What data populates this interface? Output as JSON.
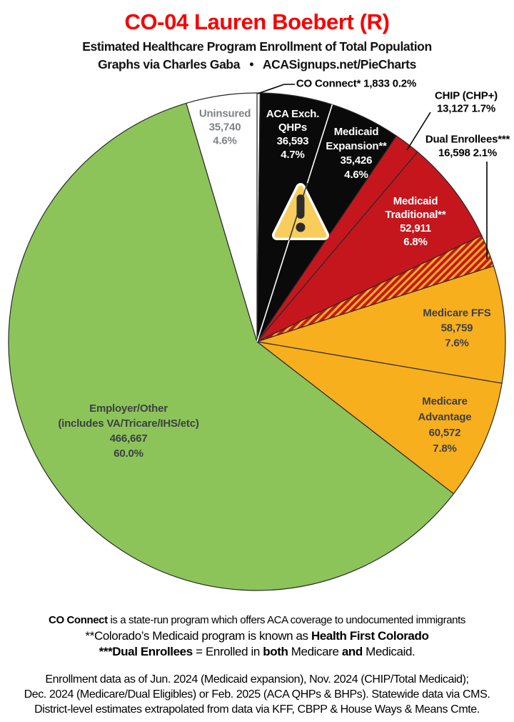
{
  "header": {
    "title": "CO-04 Lauren Boebert (R)",
    "title_color": "#f60000",
    "subtitle": "Estimated Healthcare Program Enrollment of Total Population",
    "credit": "Graphs via Charles Gaba   •   ACASignups.net/PieCharts"
  },
  "chart_data": {
    "type": "pie",
    "title": "Estimated Healthcare Program Enrollment of Total Population",
    "units": "people enrolled",
    "start_angle": "12-oclock",
    "direction": "clockwise",
    "outline_color": "#2a2a2a",
    "legend_position": "labels-on-slices-and-callouts",
    "hatch": {
      "base": "#c5161d",
      "stripe": "#f8af1d"
    },
    "slices": [
      {
        "id": "co-connect",
        "name": "CO Connect*",
        "value": 1833,
        "value_str": "1,833",
        "pct": 0.2,
        "pct_str": "0.2%",
        "color": "#ffffff",
        "callout_lines": [
          "CO Connect* 1,833 0.2%"
        ]
      },
      {
        "id": "aca-qhps",
        "name": "ACA Exch. QHPs",
        "value": 36593,
        "value_str": "36,593",
        "pct": 4.7,
        "pct_str": "4.7%",
        "color": "#0a0a0a",
        "text_color": "#ffffff",
        "label_lines": [
          "ACA Exch.",
          "QHPs",
          "36,593",
          "4.7%"
        ]
      },
      {
        "id": "medicaid-expansion",
        "name": "Medicaid Expansion**",
        "value": 35426,
        "value_str": "35,426",
        "pct": 4.6,
        "pct_str": "4.6%",
        "color": "#0a0a0a",
        "text_color": "#ffffff",
        "label_lines": [
          "Medicaid",
          "Expansion**",
          "35,426",
          "4.6%"
        ]
      },
      {
        "id": "chip",
        "name": "CHIP (CHP+)",
        "value": 13127,
        "value_str": "13,127",
        "pct": 1.7,
        "pct_str": "1.7%",
        "color": "#c5161d",
        "callout_lines": [
          "CHIP (CHP+)",
          "13,127 1.7%"
        ]
      },
      {
        "id": "medicaid-traditional",
        "name": "Medicaid Traditional**",
        "value": 52911,
        "value_str": "52,911",
        "pct": 6.8,
        "pct_str": "6.8%",
        "color": "#c5161d",
        "text_color": "#ffffff",
        "label_lines": [
          "Medicaid",
          "Traditional**",
          "52,911",
          "6.8%"
        ]
      },
      {
        "id": "dual-enrollees",
        "name": "Dual Enrollees***",
        "value": 16598,
        "value_str": "16,598",
        "pct": 2.1,
        "pct_str": "2.1%",
        "color": "#c5161d",
        "pattern": "diagonal-gold-stripes",
        "callout_lines": [
          "Dual Enrollees***",
          "16,598 2.1%"
        ]
      },
      {
        "id": "medicare-ffs",
        "name": "Medicare FFS",
        "value": 58759,
        "value_str": "58,759",
        "pct": 7.6,
        "pct_str": "7.6%",
        "color": "#f8af1d",
        "text_color": "#3e4044",
        "label_lines": [
          "Medicare FFS",
          "58,759",
          "7.6%"
        ]
      },
      {
        "id": "medicare-advantage",
        "name": "Medicare Advantage",
        "value": 60572,
        "value_str": "60,572",
        "pct": 7.8,
        "pct_str": "7.8%",
        "color": "#f8af1d",
        "text_color": "#3e4044",
        "label_lines": [
          "Medicare",
          "Advantage",
          "60,572",
          "7.8%"
        ]
      },
      {
        "id": "employer-other",
        "name": "Employer/Other (includes VA/Tricare/IHS/etc)",
        "value": 466667,
        "value_str": "466,667",
        "pct": 60.0,
        "pct_str": "60.0%",
        "color": "#8cc45a",
        "text_color": "#3e4044",
        "label_lines": [
          "Employer/Other",
          "(includes VA/Tricare/IHS/etc)",
          "466,667",
          "60.0%"
        ]
      },
      {
        "id": "uninsured",
        "name": "Uninsured",
        "value": 35740,
        "value_str": "35,740",
        "pct": 4.6,
        "pct_str": "4.6%",
        "color": "#ffffff",
        "text_color": "#7f8285",
        "label_lines": [
          "Uninsured",
          "35,740",
          "4.6%"
        ]
      }
    ],
    "annotations": {
      "warning_icon": "warning-triangle on ACA Exchange / Medicaid Expansion slices"
    }
  },
  "footnotes": {
    "block1": {
      "line1": [
        {
          "t": "CO Connect",
          "b": 1
        },
        {
          "t": " is a state-run program which offers ACA coverage to undocumented immigrants",
          "b": 0
        }
      ],
      "line2": [
        {
          "t": "**Colorado’s Medicaid program is known as ",
          "b": 0
        },
        {
          "t": "Health First Colorado",
          "b": 1
        }
      ],
      "line3": [
        {
          "t": "***Dual Enrollees",
          "b": 1
        },
        {
          "t": " = Enrolled in ",
          "b": 0
        },
        {
          "t": "both",
          "b": 1
        },
        {
          "t": " Medicare ",
          "b": 0
        },
        {
          "t": "and",
          "b": 1
        },
        {
          "t": " Medicaid.",
          "b": 0
        }
      ]
    },
    "block2": {
      "line1": "Enrollment data as of Jun. 2024 (Medicaid expansion), Nov. 2024 (CHIP/Total Medicaid);",
      "line2": "Dec. 2024 (Medicare/Dual Eligibles) or Feb. 2025 (ACA QHPs & BHPs). Statewide data via CMS.",
      "line3": "District-level estimates extrapolated from data via KFF, CBPP & House Ways & Means Cmte."
    }
  }
}
